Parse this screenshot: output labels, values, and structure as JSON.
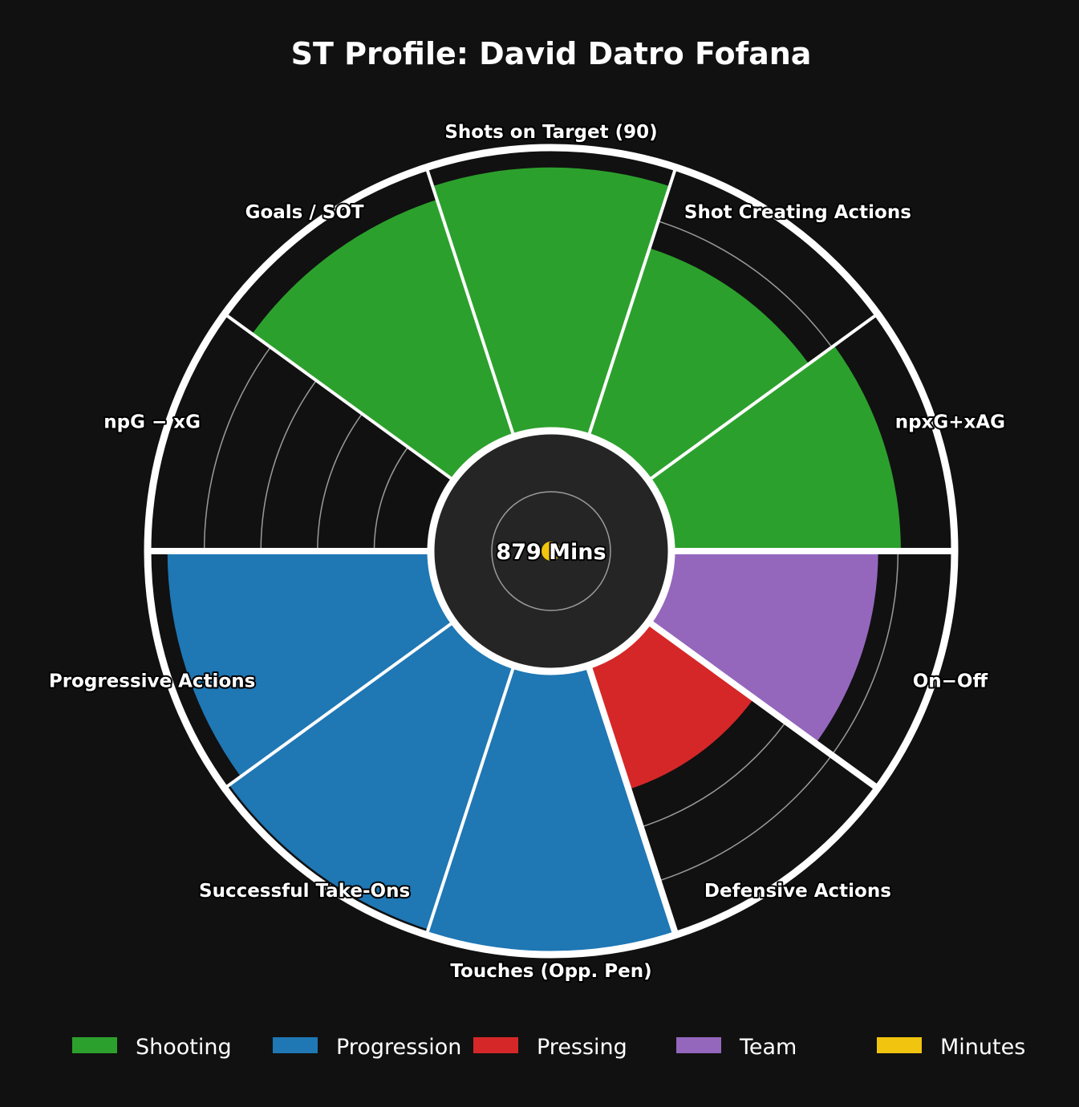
{
  "chart_data": {
    "type": "radial_bar",
    "title": "ST Profile: David Datro Fofana",
    "center_label": "879 Mins",
    "categories": [
      {
        "label": "npxG+xAG",
        "group": "Shooting",
        "value": 81
      },
      {
        "label": "Shot Creating Actions",
        "group": "Shooting",
        "value": 70
      },
      {
        "label": "Shots on Target (90)",
        "group": "Shooting",
        "value": 93
      },
      {
        "label": "Goals / SOT",
        "group": "Shooting",
        "value": 88
      },
      {
        "label": "npG − xG",
        "group": "Shooting",
        "value": 0
      },
      {
        "label": "Progressive Actions",
        "group": "Progression",
        "value": 93
      },
      {
        "label": "Successful Take-Ons",
        "group": "Progression",
        "value": 98
      },
      {
        "label": "Touches (Opp. Pen)",
        "group": "Progression",
        "value": 100
      },
      {
        "label": "Defensive Actions",
        "group": "Pressing",
        "value": 46
      },
      {
        "label": "On−Off",
        "group": "Team",
        "value": 73
      }
    ],
    "rlim": [
      0,
      100
    ],
    "legend": [
      {
        "name": "Shooting",
        "color": "#2ca02c"
      },
      {
        "name": "Progression",
        "color": "#1f77b4"
      },
      {
        "name": "Pressing",
        "color": "#d62728"
      },
      {
        "name": "Team",
        "color": "#9467bd"
      },
      {
        "name": "Minutes",
        "color": "#f1c40f"
      }
    ],
    "legend_position": "bottom",
    "grid": true
  },
  "colors": {
    "background": "#111111",
    "center": "#252525",
    "ring": "#ffffff",
    "grid": "#9a9a9a"
  }
}
